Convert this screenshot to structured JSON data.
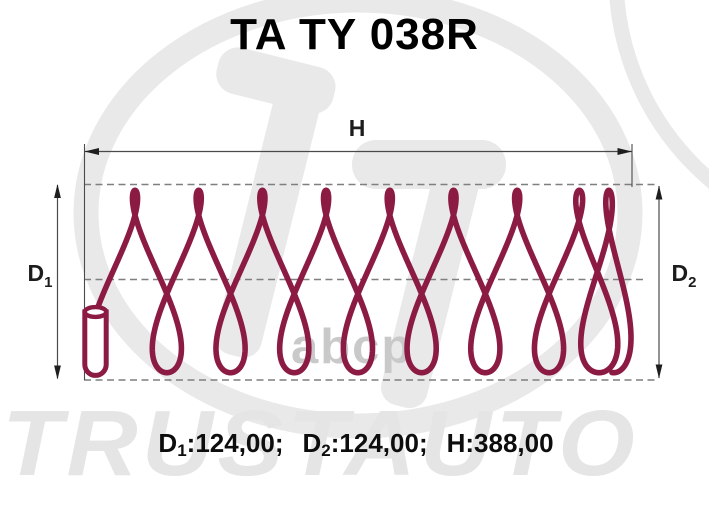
{
  "title": "TA TY 038R",
  "watermarks": {
    "brand": "TRUSTAUTO",
    "parts": "abcp"
  },
  "diagram": {
    "labels": {
      "height": {
        "base": "H",
        "sub": ""
      },
      "d1": {
        "base": "D",
        "sub": "1"
      },
      "d2": {
        "base": "D",
        "sub": "2"
      }
    }
  },
  "dimensions": {
    "d1_value": "124,00",
    "d2_value": "124,00",
    "h_value": "388,00",
    "segments": [
      {
        "base": "D",
        "sub": "1",
        "value": ":124,00;"
      },
      {
        "base": "D",
        "sub": "2",
        "value": ":124,00;"
      },
      {
        "base": "H",
        "sub": "",
        "value": ":388,00"
      }
    ]
  },
  "colors": {
    "spring": "#8C1B44",
    "dash_line": "#7f7f7f",
    "dimension_line": "#4a4a4a",
    "arrow": "#1e1e1e",
    "watermark_logo": "#e9e9e9",
    "watermark_brand": "#e5e5e5",
    "watermark_parts": "#c9c9c9",
    "text": "#000000"
  }
}
